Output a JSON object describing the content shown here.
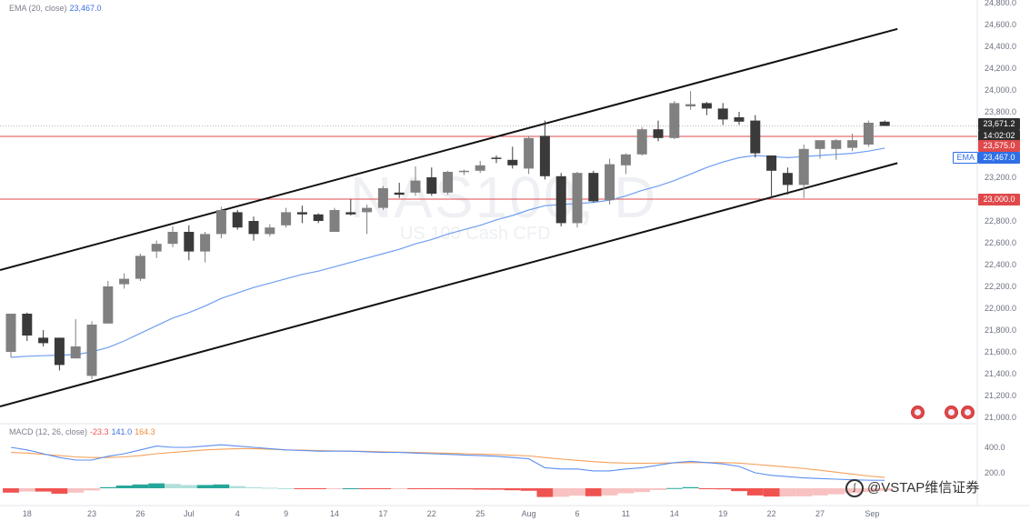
{
  "background_symbol": "NAS100, D",
  "background_description": "US 100 Cash CFD",
  "legend": {
    "ema_label": "EMA (20, close)",
    "ema_value": "23,467.0",
    "macd_label": "MACD (12, 26, close)",
    "macd_hist": "-23.3",
    "macd_line": "141.0",
    "macd_signal": "164.3"
  },
  "price_labels": {
    "last": "23,671.2",
    "countdown": "14:02:02",
    "resistance": "23,575.0",
    "ema_tag": "EMA",
    "ema": "23,467.0",
    "support": "23,000.0"
  },
  "watermark": "@VSTAP维信证券",
  "colors": {
    "up_candle": "#808080",
    "down_candle": "#3a3a3a",
    "ema_line": "#6f9ef2",
    "macd_line": "#5b8ff0",
    "signal_line": "#f5a05a",
    "hist_pos": "#26a69a",
    "hist_neg": "#ef5350",
    "hline": "#e0494b",
    "channel": "#111111"
  },
  "chart_data": {
    "type": "candlestick",
    "price_axis": {
      "ticks": [
        "21,000.0",
        "21,200.0",
        "21,400.0",
        "21,600.0",
        "21,800.0",
        "22,000.0",
        "22,200.0",
        "22,400.0",
        "22,600.0",
        "22,800.0",
        "23,000.0",
        "23,200.0",
        "23,400.0",
        "23,600.0",
        "23,800.0",
        "24,000.0",
        "24,200.0",
        "24,400.0",
        "24,600.0",
        "24,800.0"
      ],
      "range": [
        21000,
        24800
      ]
    },
    "macd_axis": {
      "ticks": [
        "400.0",
        "200.0"
      ]
    },
    "time_axis": {
      "ticks": [
        "18",
        "23",
        "26",
        "Jul",
        "4",
        "9",
        "14",
        "17",
        "22",
        "25",
        "Aug",
        "6",
        "11",
        "14",
        "19",
        "22",
        "27",
        "Sep"
      ]
    },
    "candles": [
      {
        "o": 21600,
        "h": 21950,
        "l": 21550,
        "c": 21950
      },
      {
        "o": 21950,
        "h": 21960,
        "l": 21700,
        "c": 21750
      },
      {
        "o": 21730,
        "h": 21800,
        "l": 21650,
        "c": 21680
      },
      {
        "o": 21730,
        "h": 21730,
        "l": 21430,
        "c": 21480
      },
      {
        "o": 21540,
        "h": 21900,
        "l": 21540,
        "c": 21650
      },
      {
        "o": 21380,
        "h": 21880,
        "l": 21350,
        "c": 21850
      },
      {
        "o": 21860,
        "h": 22250,
        "l": 21860,
        "c": 22200
      },
      {
        "o": 22220,
        "h": 22320,
        "l": 22180,
        "c": 22270
      },
      {
        "o": 22270,
        "h": 22500,
        "l": 22250,
        "c": 22480
      },
      {
        "o": 22520,
        "h": 22620,
        "l": 22460,
        "c": 22590
      },
      {
        "o": 22590,
        "h": 22750,
        "l": 22560,
        "c": 22700
      },
      {
        "o": 22700,
        "h": 22760,
        "l": 22440,
        "c": 22520
      },
      {
        "o": 22520,
        "h": 22700,
        "l": 22420,
        "c": 22680
      },
      {
        "o": 22680,
        "h": 22930,
        "l": 22640,
        "c": 22900
      },
      {
        "o": 22880,
        "h": 22900,
        "l": 22720,
        "c": 22740
      },
      {
        "o": 22800,
        "h": 22840,
        "l": 22620,
        "c": 22680
      },
      {
        "o": 22680,
        "h": 22770,
        "l": 22660,
        "c": 22740
      },
      {
        "o": 22760,
        "h": 22920,
        "l": 22740,
        "c": 22880
      },
      {
        "o": 22880,
        "h": 22940,
        "l": 22780,
        "c": 22860
      },
      {
        "o": 22860,
        "h": 22870,
        "l": 22780,
        "c": 22800
      },
      {
        "o": 22700,
        "h": 22920,
        "l": 22700,
        "c": 22900
      },
      {
        "o": 22880,
        "h": 23000,
        "l": 22850,
        "c": 22860
      },
      {
        "o": 22880,
        "h": 22950,
        "l": 22680,
        "c": 22920
      },
      {
        "o": 22920,
        "h": 23120,
        "l": 22900,
        "c": 23100
      },
      {
        "o": 23060,
        "h": 23150,
        "l": 23010,
        "c": 23040
      },
      {
        "o": 23060,
        "h": 23300,
        "l": 23030,
        "c": 23170
      },
      {
        "o": 23200,
        "h": 23290,
        "l": 23030,
        "c": 23050
      },
      {
        "o": 23060,
        "h": 23260,
        "l": 23040,
        "c": 23250
      },
      {
        "o": 23250,
        "h": 23270,
        "l": 23220,
        "c": 23260
      },
      {
        "o": 23260,
        "h": 23350,
        "l": 23240,
        "c": 23310
      },
      {
        "o": 23380,
        "h": 23400,
        "l": 23330,
        "c": 23370
      },
      {
        "o": 23360,
        "h": 23480,
        "l": 23280,
        "c": 23310
      },
      {
        "o": 23280,
        "h": 23580,
        "l": 23230,
        "c": 23560
      },
      {
        "o": 23580,
        "h": 23720,
        "l": 23180,
        "c": 23210
      },
      {
        "o": 23210,
        "h": 23240,
        "l": 22750,
        "c": 22780
      },
      {
        "o": 22780,
        "h": 23250,
        "l": 22740,
        "c": 23240
      },
      {
        "o": 23240,
        "h": 23260,
        "l": 22970,
        "c": 22980
      },
      {
        "o": 22990,
        "h": 23370,
        "l": 22950,
        "c": 23320
      },
      {
        "o": 23310,
        "h": 23420,
        "l": 23230,
        "c": 23410
      },
      {
        "o": 23410,
        "h": 23660,
        "l": 23400,
        "c": 23640
      },
      {
        "o": 23640,
        "h": 23720,
        "l": 23530,
        "c": 23560
      },
      {
        "o": 23560,
        "h": 23900,
        "l": 23550,
        "c": 23880
      },
      {
        "o": 23850,
        "h": 23990,
        "l": 23820,
        "c": 23870
      },
      {
        "o": 23880,
        "h": 23890,
        "l": 23770,
        "c": 23830
      },
      {
        "o": 23830,
        "h": 23880,
        "l": 23680,
        "c": 23730
      },
      {
        "o": 23750,
        "h": 23800,
        "l": 23680,
        "c": 23710
      },
      {
        "o": 23720,
        "h": 23770,
        "l": 23380,
        "c": 23420
      },
      {
        "o": 23400,
        "h": 23400,
        "l": 23010,
        "c": 23260
      },
      {
        "o": 23240,
        "h": 23290,
        "l": 23040,
        "c": 23130
      },
      {
        "o": 23130,
        "h": 23500,
        "l": 23010,
        "c": 23460
      },
      {
        "o": 23460,
        "h": 23520,
        "l": 23370,
        "c": 23540
      },
      {
        "o": 23460,
        "h": 23550,
        "l": 23360,
        "c": 23540
      },
      {
        "o": 23470,
        "h": 23600,
        "l": 23440,
        "c": 23540
      },
      {
        "o": 23500,
        "h": 23720,
        "l": 23480,
        "c": 23700
      },
      {
        "o": 23710,
        "h": 23720,
        "l": 23670,
        "c": 23671
      }
    ],
    "ema": [
      21550,
      21560,
      21565,
      21570,
      21575,
      21600,
      21640,
      21700,
      21770,
      21840,
      21910,
      21960,
      22020,
      22090,
      22140,
      22190,
      22230,
      22270,
      22310,
      22340,
      22380,
      22420,
      22460,
      22500,
      22540,
      22590,
      22630,
      22680,
      22720,
      22760,
      22810,
      22850,
      22900,
      22940,
      22950,
      22960,
      22970,
      22990,
      23030,
      23080,
      23120,
      23170,
      23230,
      23290,
      23340,
      23380,
      23400,
      23390,
      23380,
      23390,
      23400,
      23410,
      23420,
      23440,
      23467
    ],
    "macd": [
      400,
      380,
      350,
      320,
      300,
      300,
      330,
      350,
      380,
      410,
      400,
      400,
      410,
      420,
      410,
      400,
      390,
      380,
      375,
      370,
      370,
      370,
      365,
      360,
      360,
      355,
      350,
      345,
      340,
      335,
      330,
      320,
      310,
      240,
      230,
      230,
      215,
      215,
      230,
      240,
      260,
      280,
      290,
      280,
      270,
      250,
      200,
      180,
      170,
      160,
      155,
      150,
      145,
      142,
      141
    ],
    "signal": [
      360,
      355,
      345,
      335,
      325,
      320,
      320,
      325,
      335,
      350,
      360,
      370,
      380,
      385,
      390,
      390,
      385,
      380,
      378,
      375,
      372,
      370,
      368,
      365,
      362,
      360,
      357,
      354,
      350,
      347,
      343,
      338,
      333,
      320,
      308,
      298,
      288,
      280,
      276,
      275,
      276,
      278,
      280,
      281,
      280,
      276,
      266,
      256,
      245,
      234,
      220,
      205,
      190,
      175,
      164
    ],
    "hist": [
      -40,
      -30,
      -30,
      -50,
      -40,
      -20,
      10,
      25,
      35,
      45,
      40,
      30,
      30,
      35,
      20,
      10,
      5,
      0,
      -3,
      -5,
      -2,
      0,
      -3,
      -5,
      -2,
      -5,
      -7,
      -9,
      -10,
      -12,
      -13,
      -18,
      -23,
      -80,
      -78,
      -68,
      -73,
      -65,
      -46,
      -35,
      -16,
      2,
      10,
      -1,
      -10,
      -26,
      -66,
      -76,
      -75,
      -74,
      -65,
      -55,
      -45,
      -33,
      -23
    ],
    "hlines": [
      23575,
      23000
    ],
    "channel_upper": [
      [
        0,
        22350
      ],
      [
        54,
        24560
      ]
    ],
    "channel_lower": [
      [
        0,
        21100
      ],
      [
        54,
        23330
      ]
    ]
  }
}
